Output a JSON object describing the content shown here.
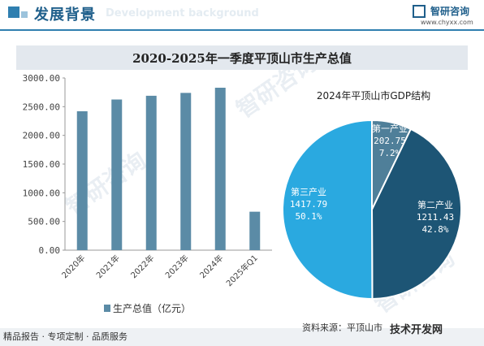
{
  "header": {
    "title": "发展背景",
    "subtitle_watermark": "Development background",
    "brand_name": "智研咨询",
    "brand_url": "www.chyxx.com"
  },
  "chart_title": "2020-2025年一季度平顶山市生产总值",
  "chart_data": [
    {
      "type": "bar",
      "categories": [
        "2020年",
        "2021年",
        "2022年",
        "2023年",
        "2024年",
        "2025年Q1"
      ],
      "series": [
        {
          "name": "生产总值（亿元）",
          "values": [
            2420,
            2625,
            2690,
            2740,
            2830,
            670
          ]
        }
      ],
      "ylim": [
        0,
        3000
      ],
      "yticks": [
        "0.00",
        "500.00",
        "1000.00",
        "1500.00",
        "2000.00",
        "2500.00",
        "3000.00"
      ],
      "legend": "bottom",
      "color": "#5b8ba6"
    },
    {
      "type": "pie",
      "title": "2024年平顶山市GDP结构",
      "slices": [
        {
          "name": "第一产业",
          "value": 202.75,
          "percent": "7.2%",
          "value_label": "202.75",
          "color": "#4f7f99"
        },
        {
          "name": "第二产业",
          "value": 1211.43,
          "percent": "42.8%",
          "value_label": "1211.43",
          "color": "#1d5575"
        },
        {
          "name": "第三产业",
          "value": 1417.79,
          "percent": "50.1%",
          "value_label": "1417.79",
          "color": "#2aa9e0"
        }
      ]
    }
  ],
  "watermark": "智研咨询",
  "footer": {
    "left": "精品报告 · 专项定制 · 品质服务",
    "source": "资料来源：平顶山市",
    "source_overlay": "技术开发网"
  }
}
